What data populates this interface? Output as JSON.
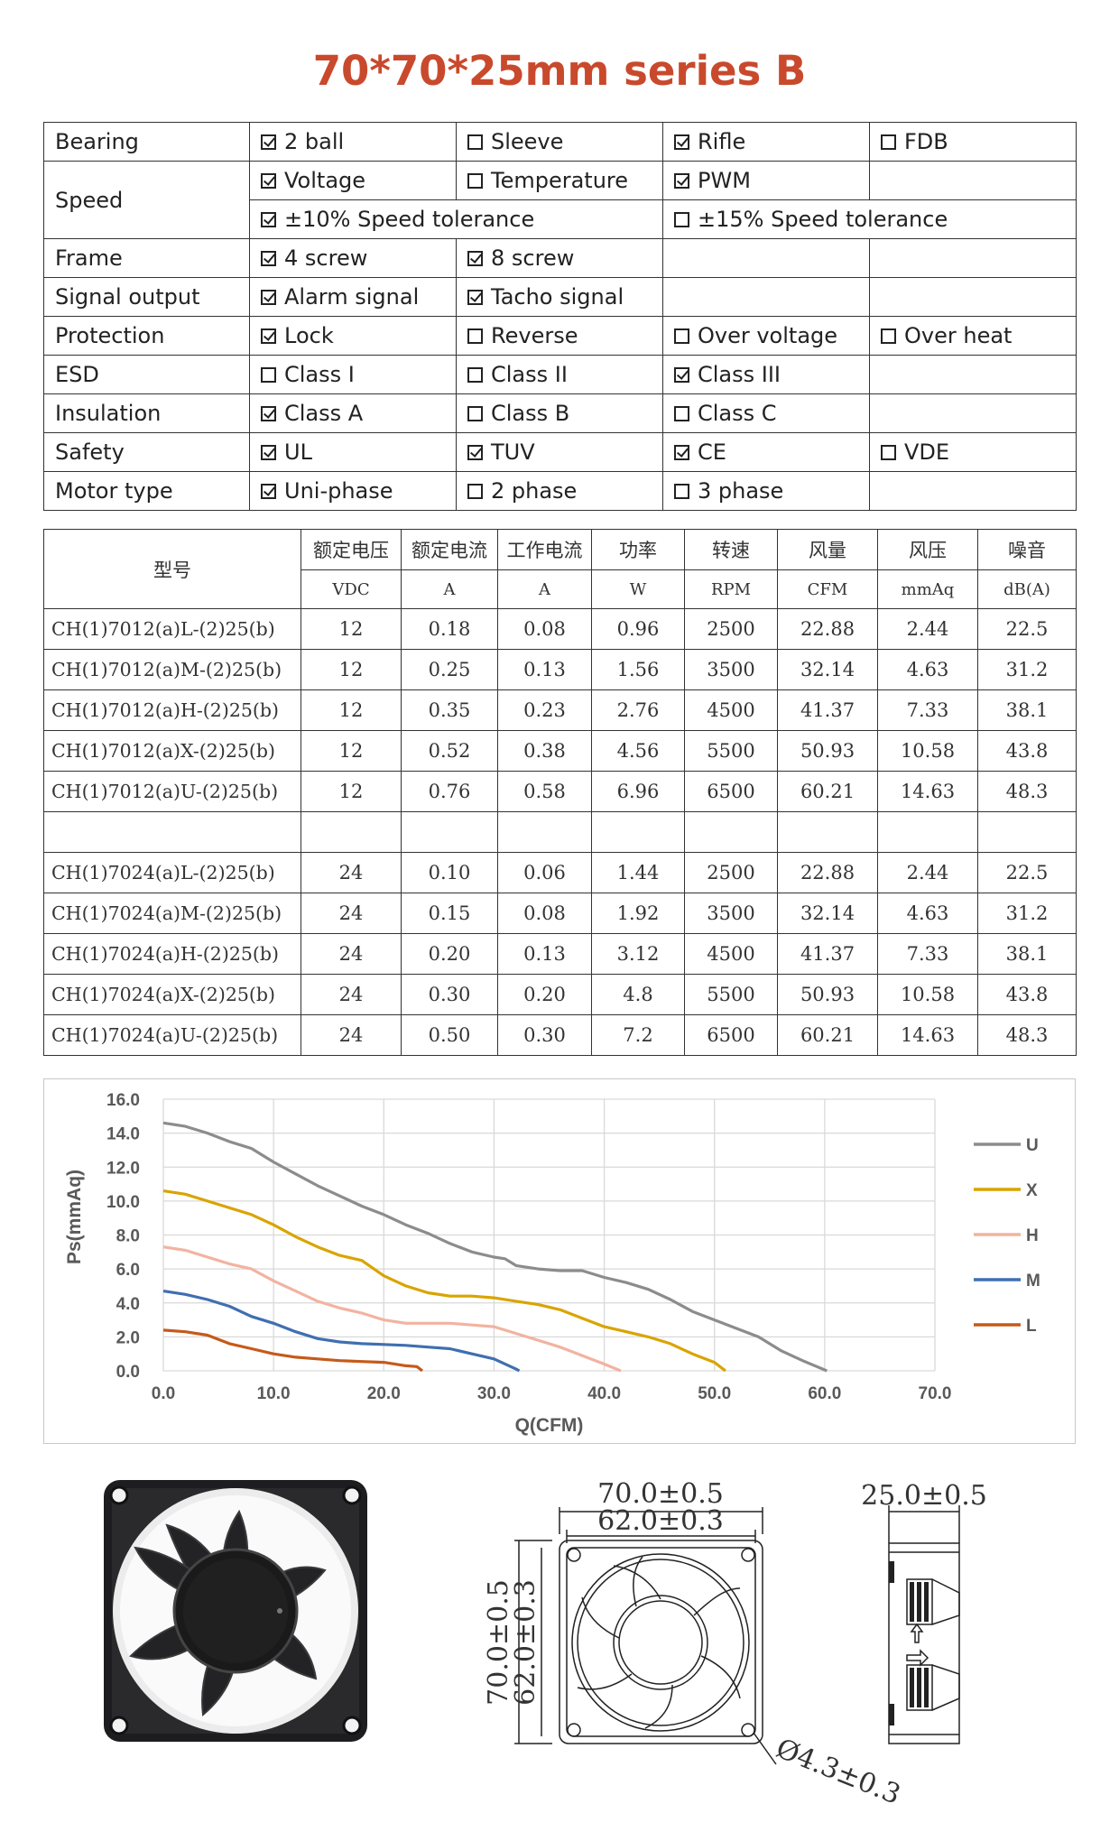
{
  "title": "70*70*25mm series B",
  "spec_rows": [
    {
      "label": "Bearing",
      "cells": [
        {
          "text": "2 ball",
          "checked": true
        },
        {
          "text": "Sleeve",
          "checked": false
        },
        {
          "text": "Rifle",
          "checked": true
        },
        {
          "text": "FDB",
          "checked": false
        }
      ]
    },
    {
      "label": "Speed",
      "cells": [
        {
          "text": "Voltage",
          "checked": true
        },
        {
          "text": "Temperature",
          "checked": false
        },
        {
          "text": "PWM",
          "checked": true
        },
        {
          "text": "",
          "checked": null
        }
      ]
    },
    {
      "label": "",
      "cells": [
        {
          "text": "±10% Speed tolerance",
          "checked": true
        },
        {
          "text": "±15% Speed tolerance",
          "checked": false
        }
      ]
    },
    {
      "label": "Frame",
      "cells": [
        {
          "text": "4 screw",
          "checked": true
        },
        {
          "text": "8 screw",
          "checked": true
        },
        {
          "text": "",
          "checked": null
        },
        {
          "text": "",
          "checked": null
        }
      ]
    },
    {
      "label": "Signal output",
      "cells": [
        {
          "text": "Alarm signal",
          "checked": true
        },
        {
          "text": "Tacho signal",
          "checked": true
        },
        {
          "text": "",
          "checked": null
        },
        {
          "text": "",
          "checked": null
        }
      ]
    },
    {
      "label": "Protection",
      "cells": [
        {
          "text": "Lock",
          "checked": true
        },
        {
          "text": "Reverse",
          "checked": false
        },
        {
          "text": "Over voltage",
          "checked": false
        },
        {
          "text": "Over heat",
          "checked": false
        }
      ]
    },
    {
      "label": "ESD",
      "cells": [
        {
          "text": "Class I",
          "checked": false
        },
        {
          "text": "Class II",
          "checked": false
        },
        {
          "text": "Class III",
          "checked": true
        },
        {
          "text": "",
          "checked": null
        }
      ]
    },
    {
      "label": "Insulation",
      "cells": [
        {
          "text": "Class A",
          "checked": true
        },
        {
          "text": "Class B",
          "checked": false
        },
        {
          "text": "Class C",
          "checked": false
        },
        {
          "text": "",
          "checked": null
        }
      ]
    },
    {
      "label": "Safety",
      "cells": [
        {
          "text": "UL",
          "checked": true
        },
        {
          "text": "TUV",
          "checked": true
        },
        {
          "text": "CE",
          "checked": true
        },
        {
          "text": "VDE",
          "checked": false
        }
      ]
    },
    {
      "label": "Motor type",
      "cells": [
        {
          "text": "Uni-phase",
          "checked": true
        },
        {
          "text": "2 phase",
          "checked": false
        },
        {
          "text": "3 phase",
          "checked": false
        },
        {
          "text": "",
          "checked": null
        }
      ]
    }
  ],
  "models": {
    "model_header": "型号",
    "headers": [
      "额定电压",
      "额定电流",
      "工作电流",
      "功率",
      "转速",
      "风量",
      "风压",
      "噪音"
    ],
    "units": [
      "VDC",
      "A",
      "A",
      "W",
      "RPM",
      "CFM",
      "mmAq",
      "dB(A)"
    ],
    "rows_12v": [
      [
        "CH(1)7012(a)L-(2)25(b)",
        "12",
        "0.18",
        "0.08",
        "0.96",
        "2500",
        "22.88",
        "2.44",
        "22.5"
      ],
      [
        "CH(1)7012(a)M-(2)25(b)",
        "12",
        "0.25",
        "0.13",
        "1.56",
        "3500",
        "32.14",
        "4.63",
        "31.2"
      ],
      [
        "CH(1)7012(a)H-(2)25(b)",
        "12",
        "0.35",
        "0.23",
        "2.76",
        "4500",
        "41.37",
        "7.33",
        "38.1"
      ],
      [
        "CH(1)7012(a)X-(2)25(b)",
        "12",
        "0.52",
        "0.38",
        "4.56",
        "5500",
        "50.93",
        "10.58",
        "43.8"
      ],
      [
        "CH(1)7012(a)U-(2)25(b)",
        "12",
        "0.76",
        "0.58",
        "6.96",
        "6500",
        "60.21",
        "14.63",
        "48.3"
      ]
    ],
    "rows_24v": [
      [
        "CH(1)7024(a)L-(2)25(b)",
        "24",
        "0.10",
        "0.06",
        "1.44",
        "2500",
        "22.88",
        "2.44",
        "22.5"
      ],
      [
        "CH(1)7024(a)M-(2)25(b)",
        "24",
        "0.15",
        "0.08",
        "1.92",
        "3500",
        "32.14",
        "4.63",
        "31.2"
      ],
      [
        "CH(1)7024(a)H-(2)25(b)",
        "24",
        "0.20",
        "0.13",
        "3.12",
        "4500",
        "41.37",
        "7.33",
        "38.1"
      ],
      [
        "CH(1)7024(a)X-(2)25(b)",
        "24",
        "0.30",
        "0.20",
        "4.8",
        "5500",
        "50.93",
        "10.58",
        "43.8"
      ],
      [
        "CH(1)7024(a)U-(2)25(b)",
        "24",
        "0.50",
        "0.30",
        "7.2",
        "6500",
        "60.21",
        "14.63",
        "48.3"
      ]
    ]
  },
  "chart_data": {
    "type": "line",
    "xlabel": "Q(CFM)",
    "ylabel": "Ps(mmAq)",
    "xlim": [
      0,
      70
    ],
    "ylim": [
      0,
      16
    ],
    "xticks": [
      "0.0",
      "10.0",
      "20.0",
      "30.0",
      "40.0",
      "50.0",
      "60.0",
      "70.0"
    ],
    "yticks": [
      "0.0",
      "2.0",
      "4.0",
      "6.0",
      "8.0",
      "10.0",
      "12.0",
      "14.0",
      "16.0"
    ],
    "grid": true,
    "legend_position": "right",
    "series": [
      {
        "name": "U",
        "color": "#8c8c8c",
        "points": [
          [
            0,
            14.6
          ],
          [
            2,
            14.4
          ],
          [
            4,
            14.0
          ],
          [
            6,
            13.5
          ],
          [
            8,
            13.1
          ],
          [
            10,
            12.3
          ],
          [
            12,
            11.6
          ],
          [
            14,
            10.9
          ],
          [
            16,
            10.3
          ],
          [
            18,
            9.7
          ],
          [
            20,
            9.2
          ],
          [
            22,
            8.6
          ],
          [
            24,
            8.1
          ],
          [
            26,
            7.5
          ],
          [
            28,
            7.0
          ],
          [
            30,
            6.7
          ],
          [
            31,
            6.6
          ],
          [
            32,
            6.2
          ],
          [
            34,
            6.0
          ],
          [
            36,
            5.9
          ],
          [
            38,
            5.9
          ],
          [
            40,
            5.5
          ],
          [
            42,
            5.2
          ],
          [
            44,
            4.8
          ],
          [
            46,
            4.2
          ],
          [
            48,
            3.5
          ],
          [
            50,
            3.0
          ],
          [
            52,
            2.5
          ],
          [
            54,
            2.0
          ],
          [
            56,
            1.2
          ],
          [
            58,
            0.6
          ],
          [
            60.2,
            0.0
          ]
        ]
      },
      {
        "name": "X",
        "color": "#d9a400",
        "points": [
          [
            0,
            10.6
          ],
          [
            2,
            10.4
          ],
          [
            4,
            10.0
          ],
          [
            6,
            9.6
          ],
          [
            8,
            9.2
          ],
          [
            10,
            8.6
          ],
          [
            12,
            7.9
          ],
          [
            14,
            7.3
          ],
          [
            16,
            6.8
          ],
          [
            18,
            6.5
          ],
          [
            20,
            5.6
          ],
          [
            22,
            5.0
          ],
          [
            24,
            4.6
          ],
          [
            26,
            4.4
          ],
          [
            28,
            4.4
          ],
          [
            30,
            4.3
          ],
          [
            32,
            4.1
          ],
          [
            34,
            3.9
          ],
          [
            36,
            3.6
          ],
          [
            38,
            3.1
          ],
          [
            40,
            2.6
          ],
          [
            42,
            2.3
          ],
          [
            44,
            2.0
          ],
          [
            46,
            1.6
          ],
          [
            48,
            1.0
          ],
          [
            50,
            0.5
          ],
          [
            51,
            0.0
          ]
        ]
      },
      {
        "name": "H",
        "color": "#f2b3a0",
        "points": [
          [
            0,
            7.3
          ],
          [
            2,
            7.1
          ],
          [
            4,
            6.7
          ],
          [
            6,
            6.3
          ],
          [
            8,
            6.0
          ],
          [
            10,
            5.3
          ],
          [
            12,
            4.7
          ],
          [
            14,
            4.1
          ],
          [
            16,
            3.7
          ],
          [
            18,
            3.4
          ],
          [
            20,
            3.0
          ],
          [
            22,
            2.8
          ],
          [
            24,
            2.8
          ],
          [
            26,
            2.8
          ],
          [
            28,
            2.7
          ],
          [
            30,
            2.6
          ],
          [
            32,
            2.2
          ],
          [
            34,
            1.8
          ],
          [
            36,
            1.4
          ],
          [
            38,
            0.9
          ],
          [
            40,
            0.4
          ],
          [
            41.5,
            0.0
          ]
        ]
      },
      {
        "name": "M",
        "color": "#3f6fb0",
        "points": [
          [
            0,
            4.7
          ],
          [
            2,
            4.5
          ],
          [
            4,
            4.2
          ],
          [
            6,
            3.8
          ],
          [
            8,
            3.2
          ],
          [
            10,
            2.8
          ],
          [
            12,
            2.3
          ],
          [
            14,
            1.9
          ],
          [
            16,
            1.7
          ],
          [
            18,
            1.6
          ],
          [
            20,
            1.55
          ],
          [
            22,
            1.5
          ],
          [
            24,
            1.4
          ],
          [
            26,
            1.3
          ],
          [
            28,
            1.0
          ],
          [
            30,
            0.7
          ],
          [
            32,
            0.1
          ],
          [
            32.3,
            0.0
          ]
        ]
      },
      {
        "name": "L",
        "color": "#c55a1a",
        "points": [
          [
            0,
            2.4
          ],
          [
            2,
            2.3
          ],
          [
            4,
            2.1
          ],
          [
            6,
            1.6
          ],
          [
            8,
            1.3
          ],
          [
            10,
            1.0
          ],
          [
            12,
            0.8
          ],
          [
            14,
            0.7
          ],
          [
            16,
            0.6
          ],
          [
            18,
            0.55
          ],
          [
            20,
            0.5
          ],
          [
            22,
            0.3
          ],
          [
            23,
            0.25
          ],
          [
            23.5,
            0.0
          ]
        ]
      }
    ]
  },
  "drawing": {
    "dim_outer_w": "70.0±0.5",
    "dim_inner_w": "62.0±0.3",
    "dim_outer_h": "70.0±0.5",
    "dim_inner_h": "62.0±0.3",
    "dim_hole": "Ø4.3±0.3",
    "dim_depth": "25.0±0.5"
  }
}
